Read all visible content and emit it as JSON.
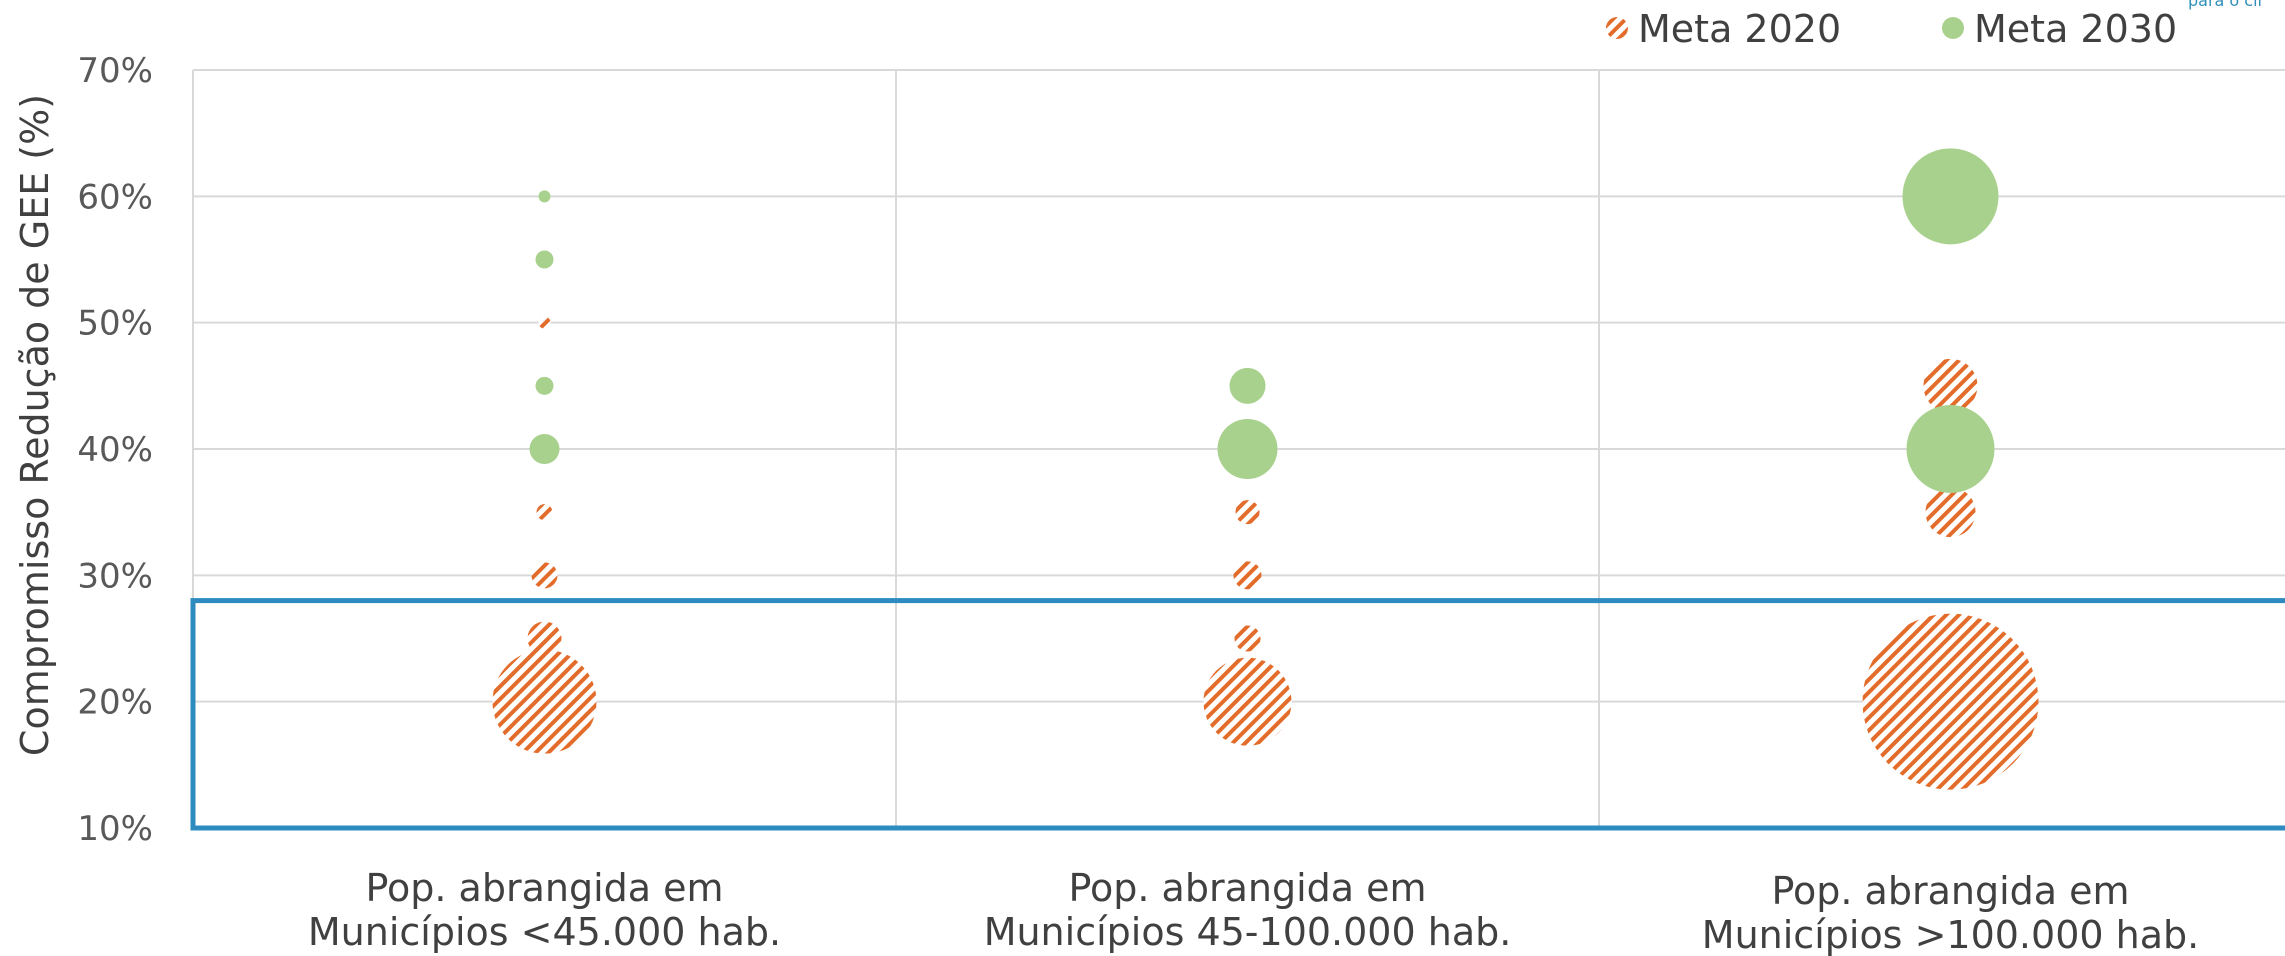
{
  "corner_note": "para o cli",
  "colors": {
    "meta2020": "#e36c2b",
    "meta2030": "#a9d18e",
    "highlight": "#2e8bbf",
    "grid": "#d9d9d9"
  },
  "chart_data": {
    "type": "scatter",
    "xlabel": "",
    "ylabel": "Compromisso Redução de GEE (%)",
    "ylim": [
      10,
      70
    ],
    "yticks": [
      "10%",
      "20%",
      "30%",
      "40%",
      "50%",
      "60%",
      "70%"
    ],
    "grid": true,
    "legend": "top-right",
    "categories": [
      [
        "Pop. abrangida em",
        "Municípios <45.000 hab."
      ],
      [
        "Pop. abrangida em",
        "Municípios 45-100.000 hab."
      ],
      [
        "Pop. abrangida em",
        "Municípios >100.000 hab."
      ]
    ],
    "highlight_range": [
      10,
      28
    ],
    "series": [
      {
        "name": "Meta 2020",
        "pattern": "hatched",
        "points": [
          {
            "category": 0,
            "y": 20,
            "size": 5.2
          },
          {
            "category": 0,
            "y": 25,
            "size": 1.7
          },
          {
            "category": 0,
            "y": 30,
            "size": 1.3
          },
          {
            "category": 0,
            "y": 35,
            "size": 0.8
          },
          {
            "category": 0,
            "y": 45,
            "size": 0.8
          },
          {
            "category": 0,
            "y": 50,
            "size": 0.6
          },
          {
            "category": 1,
            "y": 20,
            "size": 4.4
          },
          {
            "category": 1,
            "y": 25,
            "size": 1.3
          },
          {
            "category": 1,
            "y": 30,
            "size": 1.4
          },
          {
            "category": 1,
            "y": 35,
            "size": 1.2
          },
          {
            "category": 2,
            "y": 20,
            "size": 8.8
          },
          {
            "category": 2,
            "y": 35,
            "size": 2.5
          },
          {
            "category": 2,
            "y": 45,
            "size": 2.7
          }
        ]
      },
      {
        "name": "Meta 2030",
        "pattern": "solid",
        "points": [
          {
            "category": 0,
            "y": 40,
            "size": 1.5
          },
          {
            "category": 0,
            "y": 45,
            "size": 0.9
          },
          {
            "category": 0,
            "y": 55,
            "size": 0.9
          },
          {
            "category": 0,
            "y": 60,
            "size": 0.6
          },
          {
            "category": 1,
            "y": 40,
            "size": 3.0
          },
          {
            "category": 1,
            "y": 45,
            "size": 1.8
          },
          {
            "category": 2,
            "y": 40,
            "size": 4.4
          },
          {
            "category": 2,
            "y": 60,
            "size": 4.8
          }
        ]
      }
    ]
  }
}
